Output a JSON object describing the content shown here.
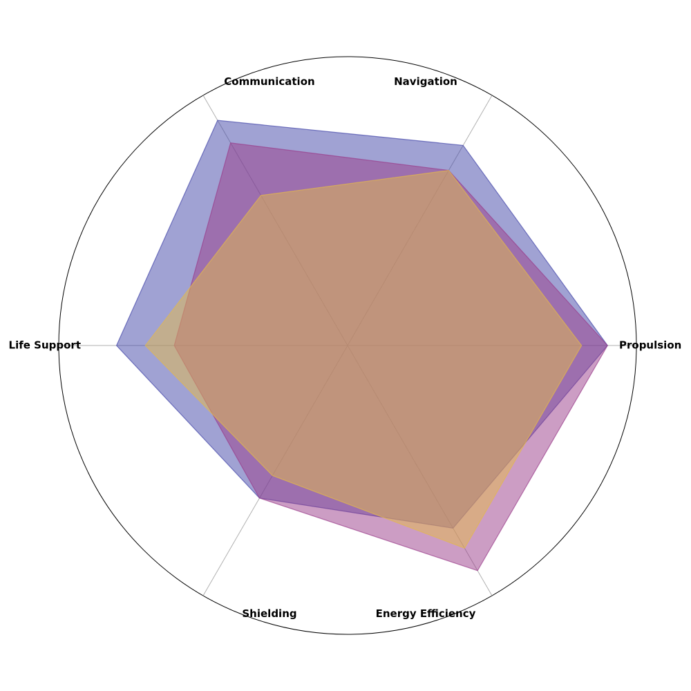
{
  "chart_data": {
    "type": "radar",
    "axes": [
      "Propulsion",
      "Navigation",
      "Communication",
      "Life Support",
      "Shielding",
      "Energy Efficiency"
    ],
    "rmax": 10,
    "grid": true,
    "series": [
      {
        "color": "#4145a8",
        "values": [
          9.0,
          8.0,
          9.0,
          8.0,
          6.1,
          7.3
        ]
      },
      {
        "color": "#9a3c8a",
        "values": [
          9.0,
          7.0,
          8.1,
          6.0,
          6.1,
          9.0
        ]
      },
      {
        "color": "#e4b94a",
        "values": [
          8.1,
          7.0,
          6.0,
          7.0,
          5.2,
          8.1
        ]
      }
    ],
    "fill_opacity": 0.5
  }
}
